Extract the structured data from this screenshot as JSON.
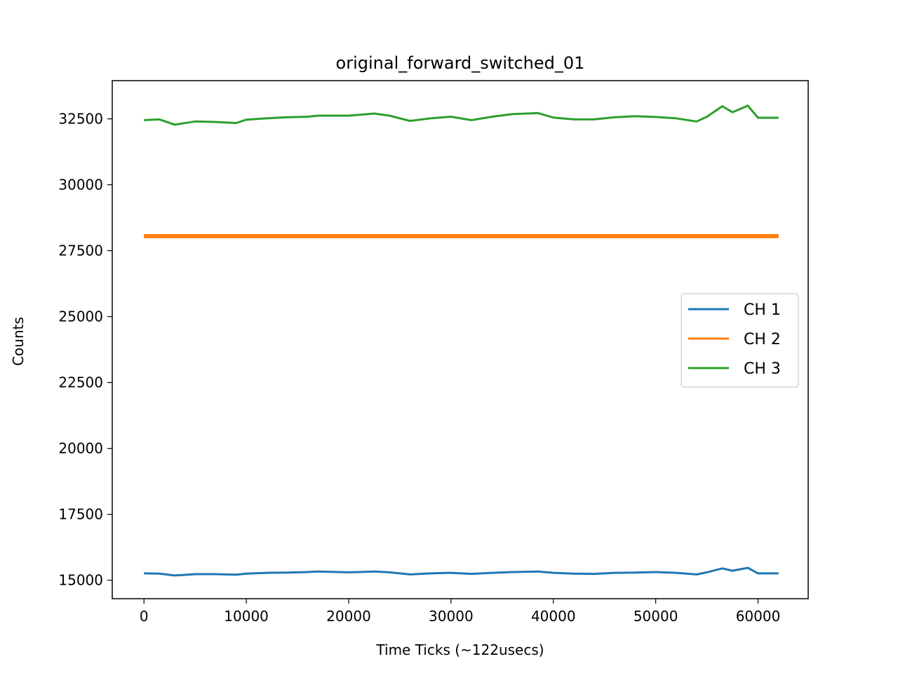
{
  "chart_data": {
    "type": "line",
    "title": "original_forward_switched_01",
    "xlabel": "Time Ticks (~122usecs)",
    "ylabel": "Counts",
    "xlim": [
      -3100,
      64900
    ],
    "ylim": [
      14300,
      33950
    ],
    "x_ticks": [
      0,
      10000,
      20000,
      30000,
      40000,
      50000,
      60000
    ],
    "x_tick_labels": [
      "0",
      "10000",
      "20000",
      "30000",
      "40000",
      "50000",
      "60000"
    ],
    "y_ticks": [
      15000,
      17500,
      20000,
      22500,
      25000,
      27500,
      30000,
      32500
    ],
    "y_tick_labels": [
      "15000",
      "17500",
      "20000",
      "22500",
      "25000",
      "27500",
      "30000",
      "32500"
    ],
    "grid": false,
    "legend_position": "center-right",
    "series": [
      {
        "name": "CH 1",
        "color": "#1f77b4",
        "x": [
          0,
          1500,
          3000,
          5000,
          7000,
          9000,
          10000,
          12000,
          14000,
          16000,
          17000,
          20000,
          22500,
          24000,
          26000,
          28000,
          30000,
          32000,
          34000,
          36000,
          38500,
          40000,
          42000,
          44000,
          46000,
          48000,
          50000,
          52000,
          54000,
          55000,
          56500,
          57500,
          59000,
          60000,
          62000
        ],
        "y": [
          15260,
          15250,
          15180,
          15230,
          15230,
          15210,
          15250,
          15280,
          15290,
          15310,
          15330,
          15300,
          15330,
          15300,
          15220,
          15260,
          15280,
          15240,
          15280,
          15310,
          15330,
          15280,
          15250,
          15240,
          15280,
          15290,
          15310,
          15280,
          15220,
          15300,
          15450,
          15360,
          15470,
          15260,
          15260
        ]
      },
      {
        "name": "CH 2",
        "color": "#ff7f0e",
        "x": [
          0,
          10000,
          20000,
          30000,
          40000,
          50000,
          62000
        ],
        "y": [
          28050,
          28050,
          28050,
          28050,
          28050,
          28050,
          28050
        ]
      },
      {
        "name": "CH 3",
        "color": "#2ca02c",
        "x": [
          0,
          1500,
          3000,
          5000,
          7000,
          9000,
          10000,
          12000,
          14000,
          16000,
          17000,
          20000,
          22500,
          24000,
          26000,
          28000,
          30000,
          32000,
          34000,
          36000,
          38500,
          40000,
          42000,
          44000,
          46000,
          48000,
          50000,
          52000,
          54000,
          55000,
          56500,
          57500,
          59000,
          60000,
          62000
        ],
        "y": [
          32450,
          32480,
          32280,
          32400,
          32380,
          32340,
          32470,
          32520,
          32560,
          32580,
          32620,
          32620,
          32700,
          32620,
          32420,
          32520,
          32580,
          32450,
          32580,
          32680,
          32720,
          32550,
          32480,
          32480,
          32560,
          32600,
          32570,
          32520,
          32400,
          32580,
          32980,
          32750,
          33000,
          32540,
          32540
        ]
      }
    ]
  }
}
